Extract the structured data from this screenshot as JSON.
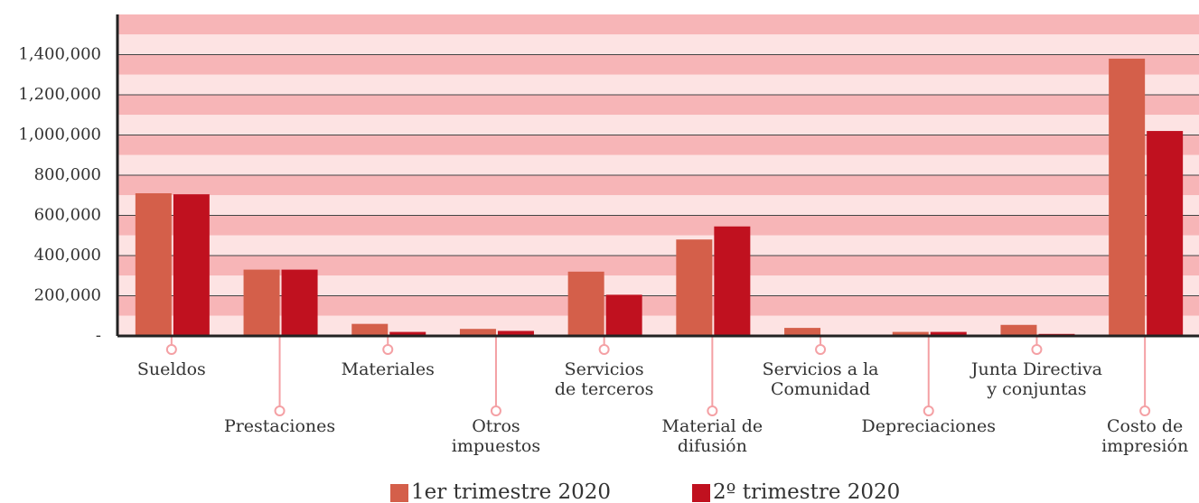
{
  "chart_data": {
    "type": "bar",
    "categories": [
      "Sueldos",
      "Prestaciones",
      "Materiales",
      "Otros\nimpuestos",
      "Servicios\nde terceros",
      "Material de\ndifusión",
      "Servicios a la\nComunidad",
      "Depreciaciones",
      "Junta Directiva\ny conjuntas",
      "Costo de\nimpresión"
    ],
    "series": [
      {
        "name": "1er trimestre 2020",
        "color": "#d45f4a",
        "values": [
          710000,
          330000,
          60000,
          35000,
          320000,
          480000,
          40000,
          20000,
          55000,
          1380000
        ]
      },
      {
        "name": "2º trimestre 2020",
        "color": "#c0111f",
        "values": [
          705000,
          330000,
          20000,
          25000,
          205000,
          545000,
          0,
          20000,
          10000,
          1020000
        ]
      }
    ],
    "ylim": [
      0,
      1600000
    ],
    "yticks": [
      {
        "value": 0,
        "label": "-"
      },
      {
        "value": 200000,
        "label": "200,000"
      },
      {
        "value": 400000,
        "label": "400,000"
      },
      {
        "value": 600000,
        "label": "600,000"
      },
      {
        "value": 800000,
        "label": "800,000"
      },
      {
        "value": 1000000,
        "label": "1,000,000"
      },
      {
        "value": 1200000,
        "label": "1,200,000"
      },
      {
        "value": 1400000,
        "label": "1,400,000"
      }
    ],
    "grid": true,
    "legend": "bottom"
  }
}
